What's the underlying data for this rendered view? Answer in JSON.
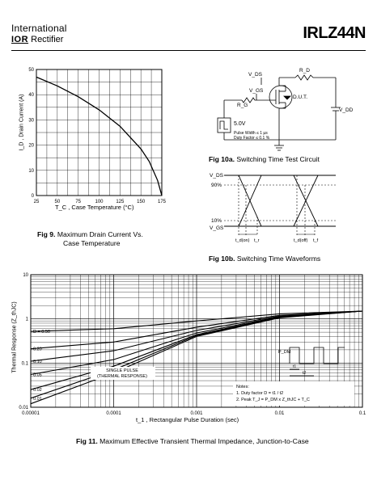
{
  "header": {
    "brand_line1": "International",
    "brand_logo": "IOR",
    "brand_line2": "Rectifier",
    "part_number": "IRLZ44N"
  },
  "fig9": {
    "fig_label": "Fig 9.",
    "caption_line1": "Maximum Drain Current Vs.",
    "caption_line2": "Case Temperature",
    "ylabel": "I_D , Drain Current (A)",
    "xlabel": "T_C , Case Temperature  (°C)",
    "chart_data": {
      "type": "line",
      "x": [
        25,
        50,
        75,
        100,
        125,
        150,
        160,
        170,
        175
      ],
      "y": [
        47,
        43.5,
        39.2,
        34,
        27.5,
        18.5,
        13.5,
        6,
        0
      ],
      "xlim": [
        25,
        175
      ],
      "ylim": [
        0,
        50
      ],
      "xticks": [
        "25",
        "50",
        "75",
        "100",
        "125",
        "150",
        "175"
      ],
      "yticks": [
        "0",
        "10",
        "20",
        "30",
        "40",
        "50"
      ],
      "grid": true
    }
  },
  "fig10a": {
    "fig_label": "Fig 10a.",
    "caption": "Switching Time Test Circuit",
    "labels": {
      "rd": "R_D",
      "vds": "V_DS",
      "vgs": "V_GS",
      "rg": "R_G",
      "dut": "D.U.T.",
      "vdd": "V_DD",
      "v5": "5.0V",
      "pw": "Pulse Width ≤ 1 µs",
      "df": "Duty Factor ≤ 0.1 %"
    }
  },
  "fig10b": {
    "fig_label": "Fig 10b.",
    "caption": "Switching Time Waveforms",
    "labels": {
      "vds": "V_DS",
      "p90": "90%",
      "p10": "10%",
      "vgs": "V_GS",
      "tdon": "t_d(on)",
      "tr": "t_r",
      "tdoff": "t_d(off)",
      "tf": "t_f"
    }
  },
  "fig11": {
    "fig_label": "Fig 11.",
    "caption": "Maximum Effective Transient Thermal Impedance, Junction-to-Case",
    "ylabel": "Thermal Response   (Z_thJC)",
    "xlabel": "t_1 , Rectangular Pulse Duration (sec)",
    "single_pulse_line1": "SINGLE PULSE",
    "single_pulse_line2": "(THERMAL RESPONSE)",
    "notes_title": "Notes:",
    "note1": "1. Duty factor D =  t1 / t2",
    "note2": "2. Peak T_J = P_DM x Z_thJC + T_C",
    "pdm": "P_DM",
    "t1": "t1",
    "t2": "t2",
    "chart_data": {
      "type": "line",
      "x_scale": "log",
      "y_scale": "log",
      "xlim": [
        1e-05,
        0.1
      ],
      "ylim": [
        0.01,
        10
      ],
      "xticks": [
        "0.00001",
        "0.0001",
        "0.001",
        "0.01",
        "0.1"
      ],
      "yticks": [
        "0.01",
        "0.1",
        "1",
        "10"
      ],
      "grid": true,
      "x": [
        1e-05,
        0.0001,
        0.001,
        0.01,
        0.1
      ],
      "series": [
        {
          "name": "D = 0.50",
          "values": [
            0.52,
            0.6,
            0.9,
            1.3,
            1.5
          ]
        },
        {
          "name": "0.20",
          "values": [
            0.21,
            0.3,
            0.65,
            1.2,
            1.5
          ]
        },
        {
          "name": "0.10",
          "values": [
            0.11,
            0.19,
            0.55,
            1.15,
            1.5
          ]
        },
        {
          "name": "0.05",
          "values": [
            0.055,
            0.12,
            0.48,
            1.12,
            1.5
          ]
        },
        {
          "name": "0.02",
          "values": [
            0.025,
            0.085,
            0.44,
            1.1,
            1.5
          ]
        },
        {
          "name": "0.01",
          "values": [
            0.016,
            0.07,
            0.42,
            1.08,
            1.5
          ]
        },
        {
          "name": "SINGLE PULSE",
          "values": [
            0.012,
            0.06,
            0.4,
            1.06,
            1.5
          ]
        }
      ]
    }
  }
}
